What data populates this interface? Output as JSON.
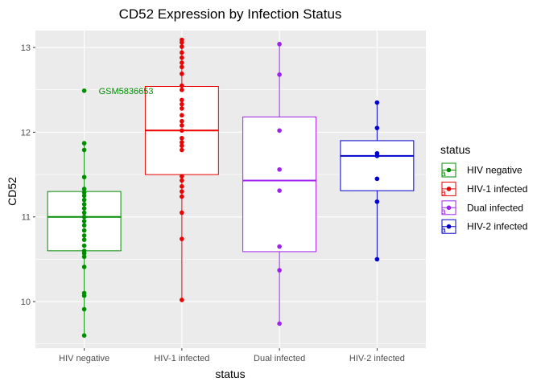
{
  "chart_data": {
    "type": "box",
    "title": "CD52 Expression by Infection Status",
    "xlabel": "status",
    "ylabel": "CD52",
    "ylim": [
      9.45,
      13.2
    ],
    "y_ticks": [
      10,
      11,
      12,
      13
    ],
    "grid": true,
    "legend": {
      "title": "status",
      "placement": "right",
      "key_glyph": "a"
    },
    "categories": [
      "HIV negative",
      "HIV-1 infected",
      "Dual infected",
      "HIV-2 infected"
    ],
    "series": [
      {
        "name": "HIV negative",
        "color": "#008b00",
        "box": {
          "q1": 10.6,
          "median": 11.0,
          "q3": 11.3,
          "whisker_low": 9.6,
          "whisker_high": 11.87
        },
        "points": [
          9.6,
          9.91,
          10.07,
          10.1,
          10.41,
          10.53,
          10.57,
          10.6,
          10.66,
          10.73,
          10.78,
          10.84,
          10.9,
          10.95,
          11.0,
          11.05,
          11.1,
          11.15,
          11.2,
          11.25,
          11.29,
          11.33,
          11.47,
          11.79,
          11.87,
          12.49
        ]
      },
      {
        "name": "HIV-1 infected",
        "color": "#ee0000",
        "box": {
          "q1": 11.5,
          "median": 12.02,
          "q3": 12.54,
          "whisker_low": 10.02,
          "whisker_high": 13.09
        },
        "points": [
          10.02,
          10.74,
          11.05,
          11.24,
          11.3,
          11.36,
          11.43,
          11.48,
          11.79,
          11.84,
          11.88,
          11.93,
          12.02,
          12.08,
          12.13,
          12.2,
          12.28,
          12.33,
          12.38,
          12.5,
          12.55,
          12.69,
          12.77,
          12.82,
          12.88,
          12.94,
          13.01,
          13.06,
          13.09
        ]
      },
      {
        "name": "Dual infected",
        "color": "#a020f0",
        "box": {
          "q1": 10.59,
          "median": 11.43,
          "q3": 12.18,
          "whisker_low": 9.74,
          "whisker_high": 13.04
        },
        "points": [
          9.74,
          10.37,
          10.65,
          11.31,
          11.56,
          12.02,
          12.68,
          13.04
        ]
      },
      {
        "name": "HIV-2 infected",
        "color": "#0000cd",
        "box": {
          "q1": 11.31,
          "median": 11.72,
          "q3": 11.9,
          "whisker_low": 10.5,
          "whisker_high": 12.35
        },
        "points": [
          10.5,
          11.18,
          11.45,
          11.72,
          11.75,
          12.05,
          12.35
        ]
      }
    ],
    "annotations": [
      {
        "text": "GSM5836653",
        "category": "HIV negative",
        "y": 12.49,
        "color": "#008b00"
      }
    ]
  }
}
